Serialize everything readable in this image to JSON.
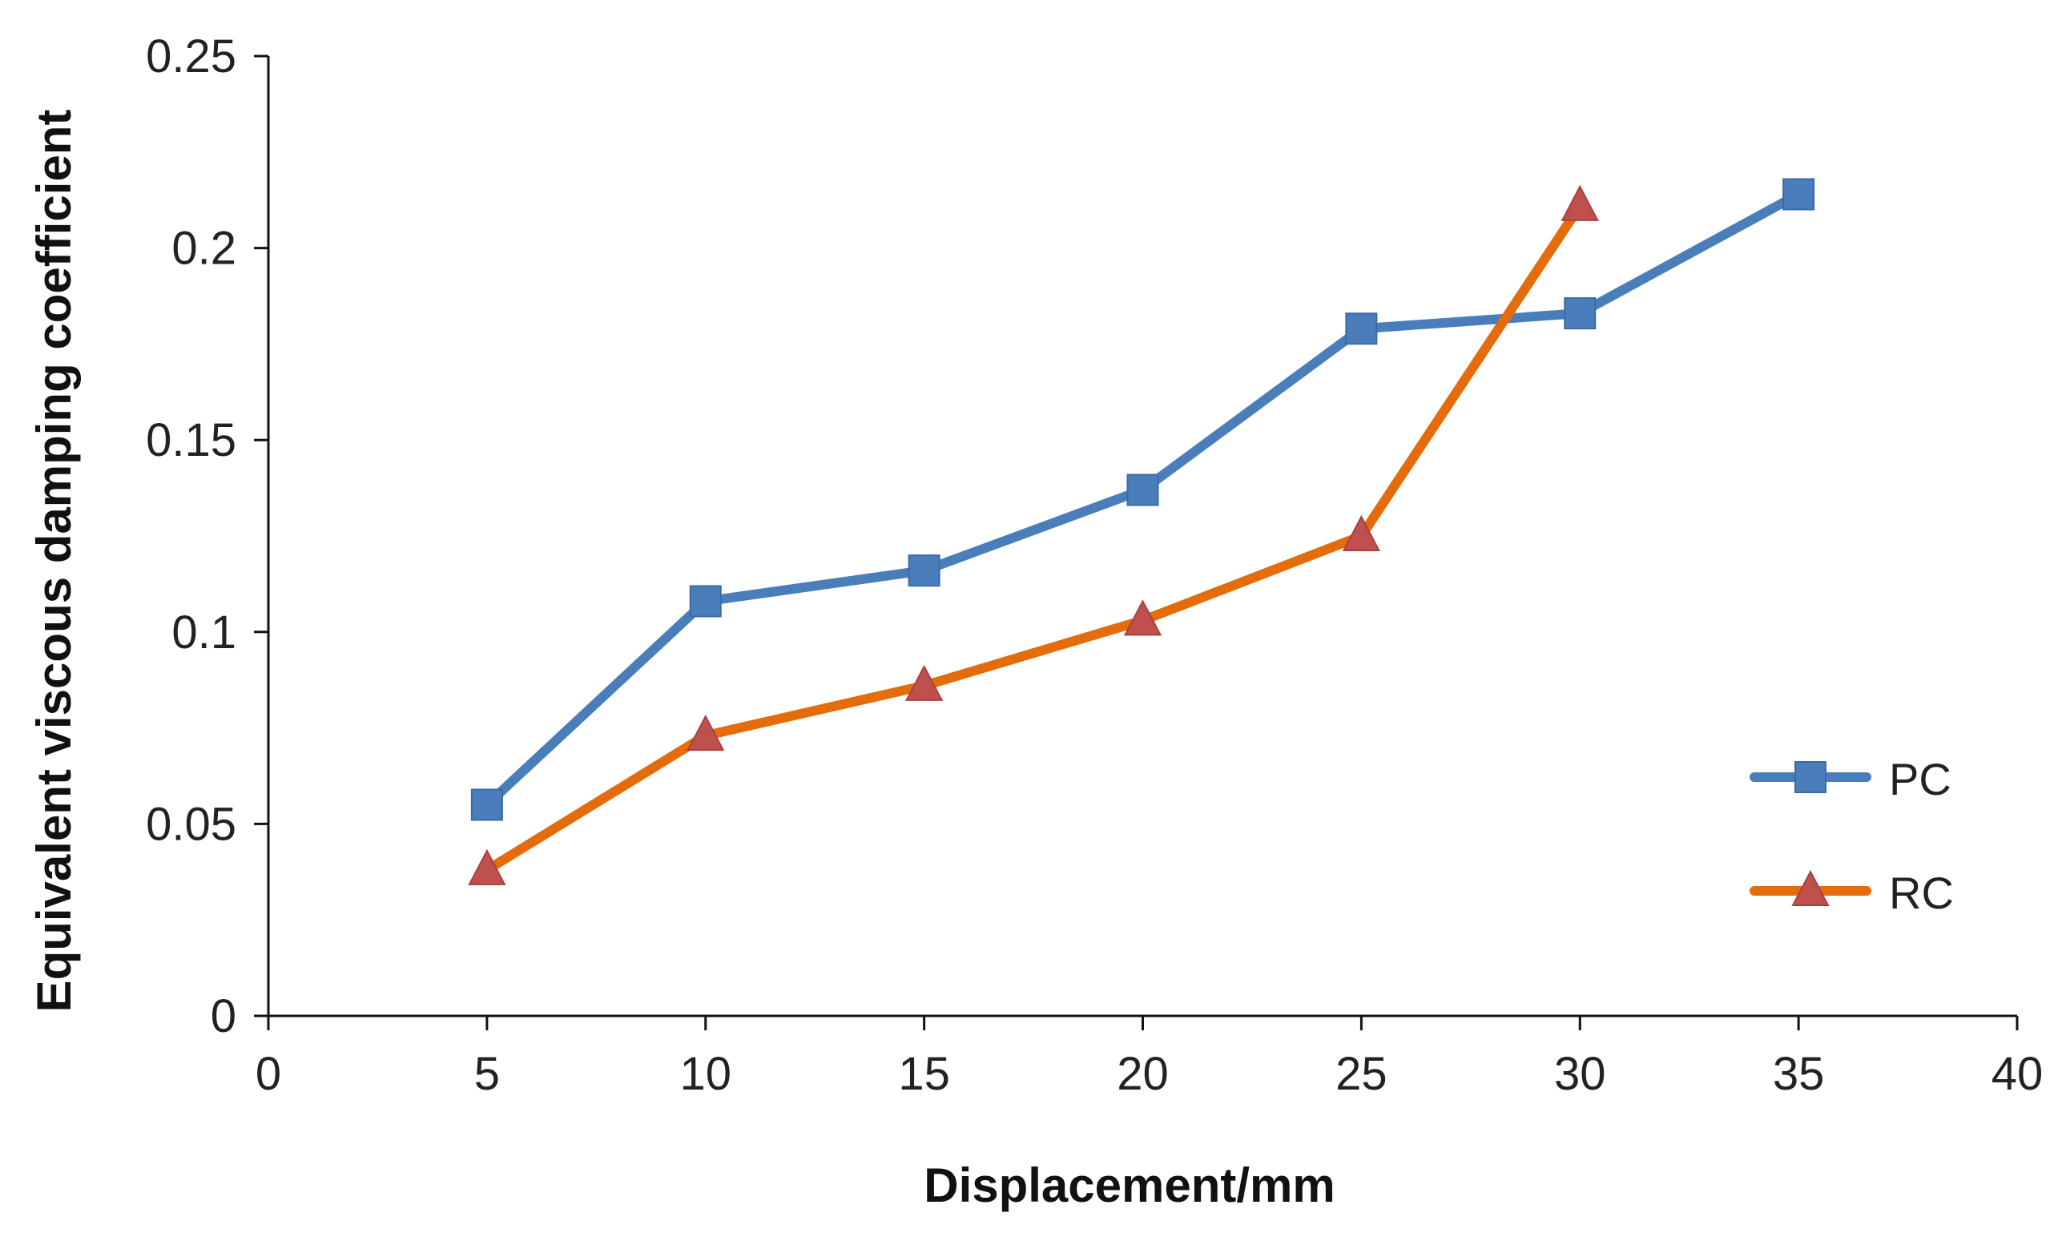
{
  "chart_data": {
    "type": "line",
    "title": "",
    "xlabel": "Displacement/mm",
    "ylabel": "Equivalent viscous damping coefficient",
    "xlim": [
      0,
      40
    ],
    "ylim": [
      0,
      0.25
    ],
    "x_ticks": [
      "0",
      "5",
      "10",
      "15",
      "20",
      "25",
      "30",
      "35",
      "40"
    ],
    "y_ticks": [
      "0",
      "0.05",
      "0.1",
      "0.15",
      "0.2",
      "0.25"
    ],
    "grid": false,
    "legend_position": "right",
    "series": [
      {
        "name": "PC",
        "color": "#4a7ebb",
        "marker": "square",
        "x": [
          5,
          10,
          15,
          20,
          25,
          30,
          35
        ],
        "y": [
          0.055,
          0.108,
          0.116,
          0.137,
          0.179,
          0.183,
          0.214
        ]
      },
      {
        "name": "RC",
        "color": "#e46c0a",
        "marker_color": "#c0504d",
        "marker": "triangle",
        "x": [
          5,
          10,
          15,
          20,
          25,
          30
        ],
        "y": [
          0.038,
          0.073,
          0.086,
          0.103,
          0.125,
          0.211
        ]
      }
    ]
  }
}
